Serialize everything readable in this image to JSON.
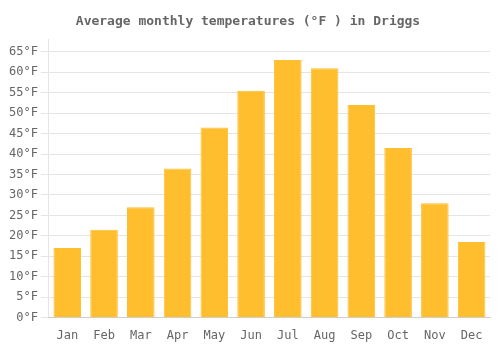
{
  "chart_data": {
    "type": "bar",
    "title": "Average monthly temperatures (°F ) in Driggs",
    "categories": [
      "Jan",
      "Feb",
      "Mar",
      "Apr",
      "May",
      "Jun",
      "Jul",
      "Aug",
      "Sep",
      "Oct",
      "Nov",
      "Dec"
    ],
    "values": [
      17,
      21.5,
      27,
      36.5,
      46.5,
      55.5,
      63,
      61,
      52,
      41.5,
      28,
      18.5
    ],
    "color": "#FFBE2D",
    "ylim": [
      0,
      68
    ],
    "yticks": [
      {
        "value": 0,
        "label": "0°F"
      },
      {
        "value": 5,
        "label": "5°F"
      },
      {
        "value": 10,
        "label": "10°F"
      },
      {
        "value": 15,
        "label": "15°F"
      },
      {
        "value": 20,
        "label": "20°F"
      },
      {
        "value": 25,
        "label": "25°F"
      },
      {
        "value": 30,
        "label": "30°F"
      },
      {
        "value": 35,
        "label": "35°F"
      },
      {
        "value": 40,
        "label": "40°F"
      },
      {
        "value": 45,
        "label": "45°F"
      },
      {
        "value": 50,
        "label": "50°F"
      },
      {
        "value": 55,
        "label": "55°F"
      },
      {
        "value": 60,
        "label": "60°F"
      },
      {
        "value": 65,
        "label": "65°F"
      }
    ],
    "grid": true
  }
}
